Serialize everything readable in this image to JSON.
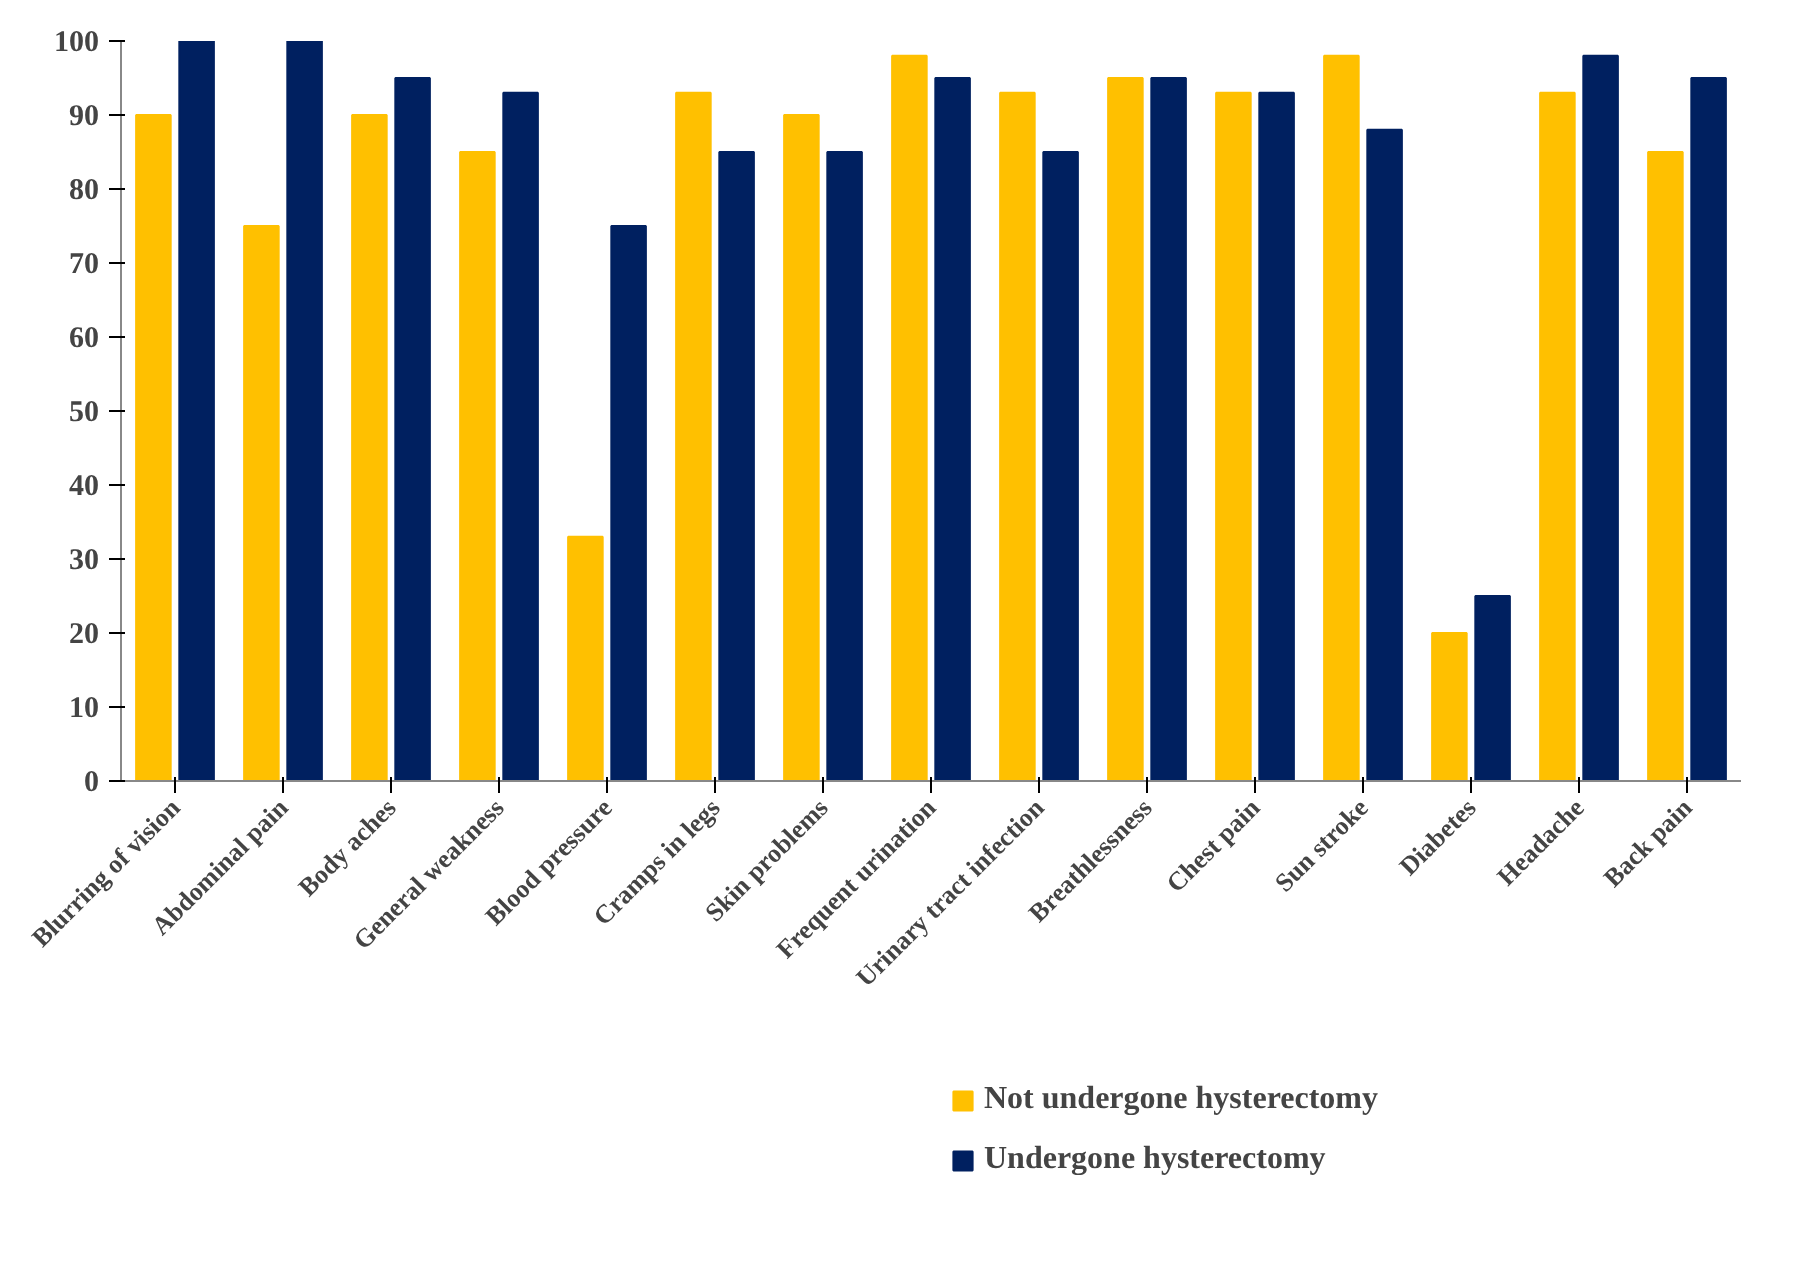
{
  "chart_data": {
    "type": "bar",
    "categories": [
      "Blurring of vision",
      "Abdominal pain",
      "Body aches",
      "General weakness",
      "Blood pressure",
      "Cramps in legs",
      "Skin problems",
      "Frequent urination",
      "Urinary tract infection",
      "Breathlessness",
      "Chest pain",
      "Sun stroke",
      "Diabetes",
      "Headache",
      "Back pain"
    ],
    "series": [
      {
        "name": "Not undergone hysterectomy",
        "color": "#ffc000",
        "values": [
          90,
          75,
          90,
          85,
          33,
          93,
          90,
          98,
          93,
          95,
          93,
          98,
          20,
          93,
          85
        ]
      },
      {
        "name": "Undergone hysterectomy",
        "color": "#002060",
        "values": [
          100,
          100,
          95,
          93,
          75,
          85,
          85,
          95,
          85,
          95,
          93,
          88,
          25,
          98,
          95
        ]
      }
    ],
    "ylim": [
      0,
      100
    ],
    "yticks": [
      0,
      10,
      20,
      30,
      40,
      50,
      60,
      70,
      80,
      90,
      100
    ],
    "grid": false,
    "legend": "bottom"
  }
}
